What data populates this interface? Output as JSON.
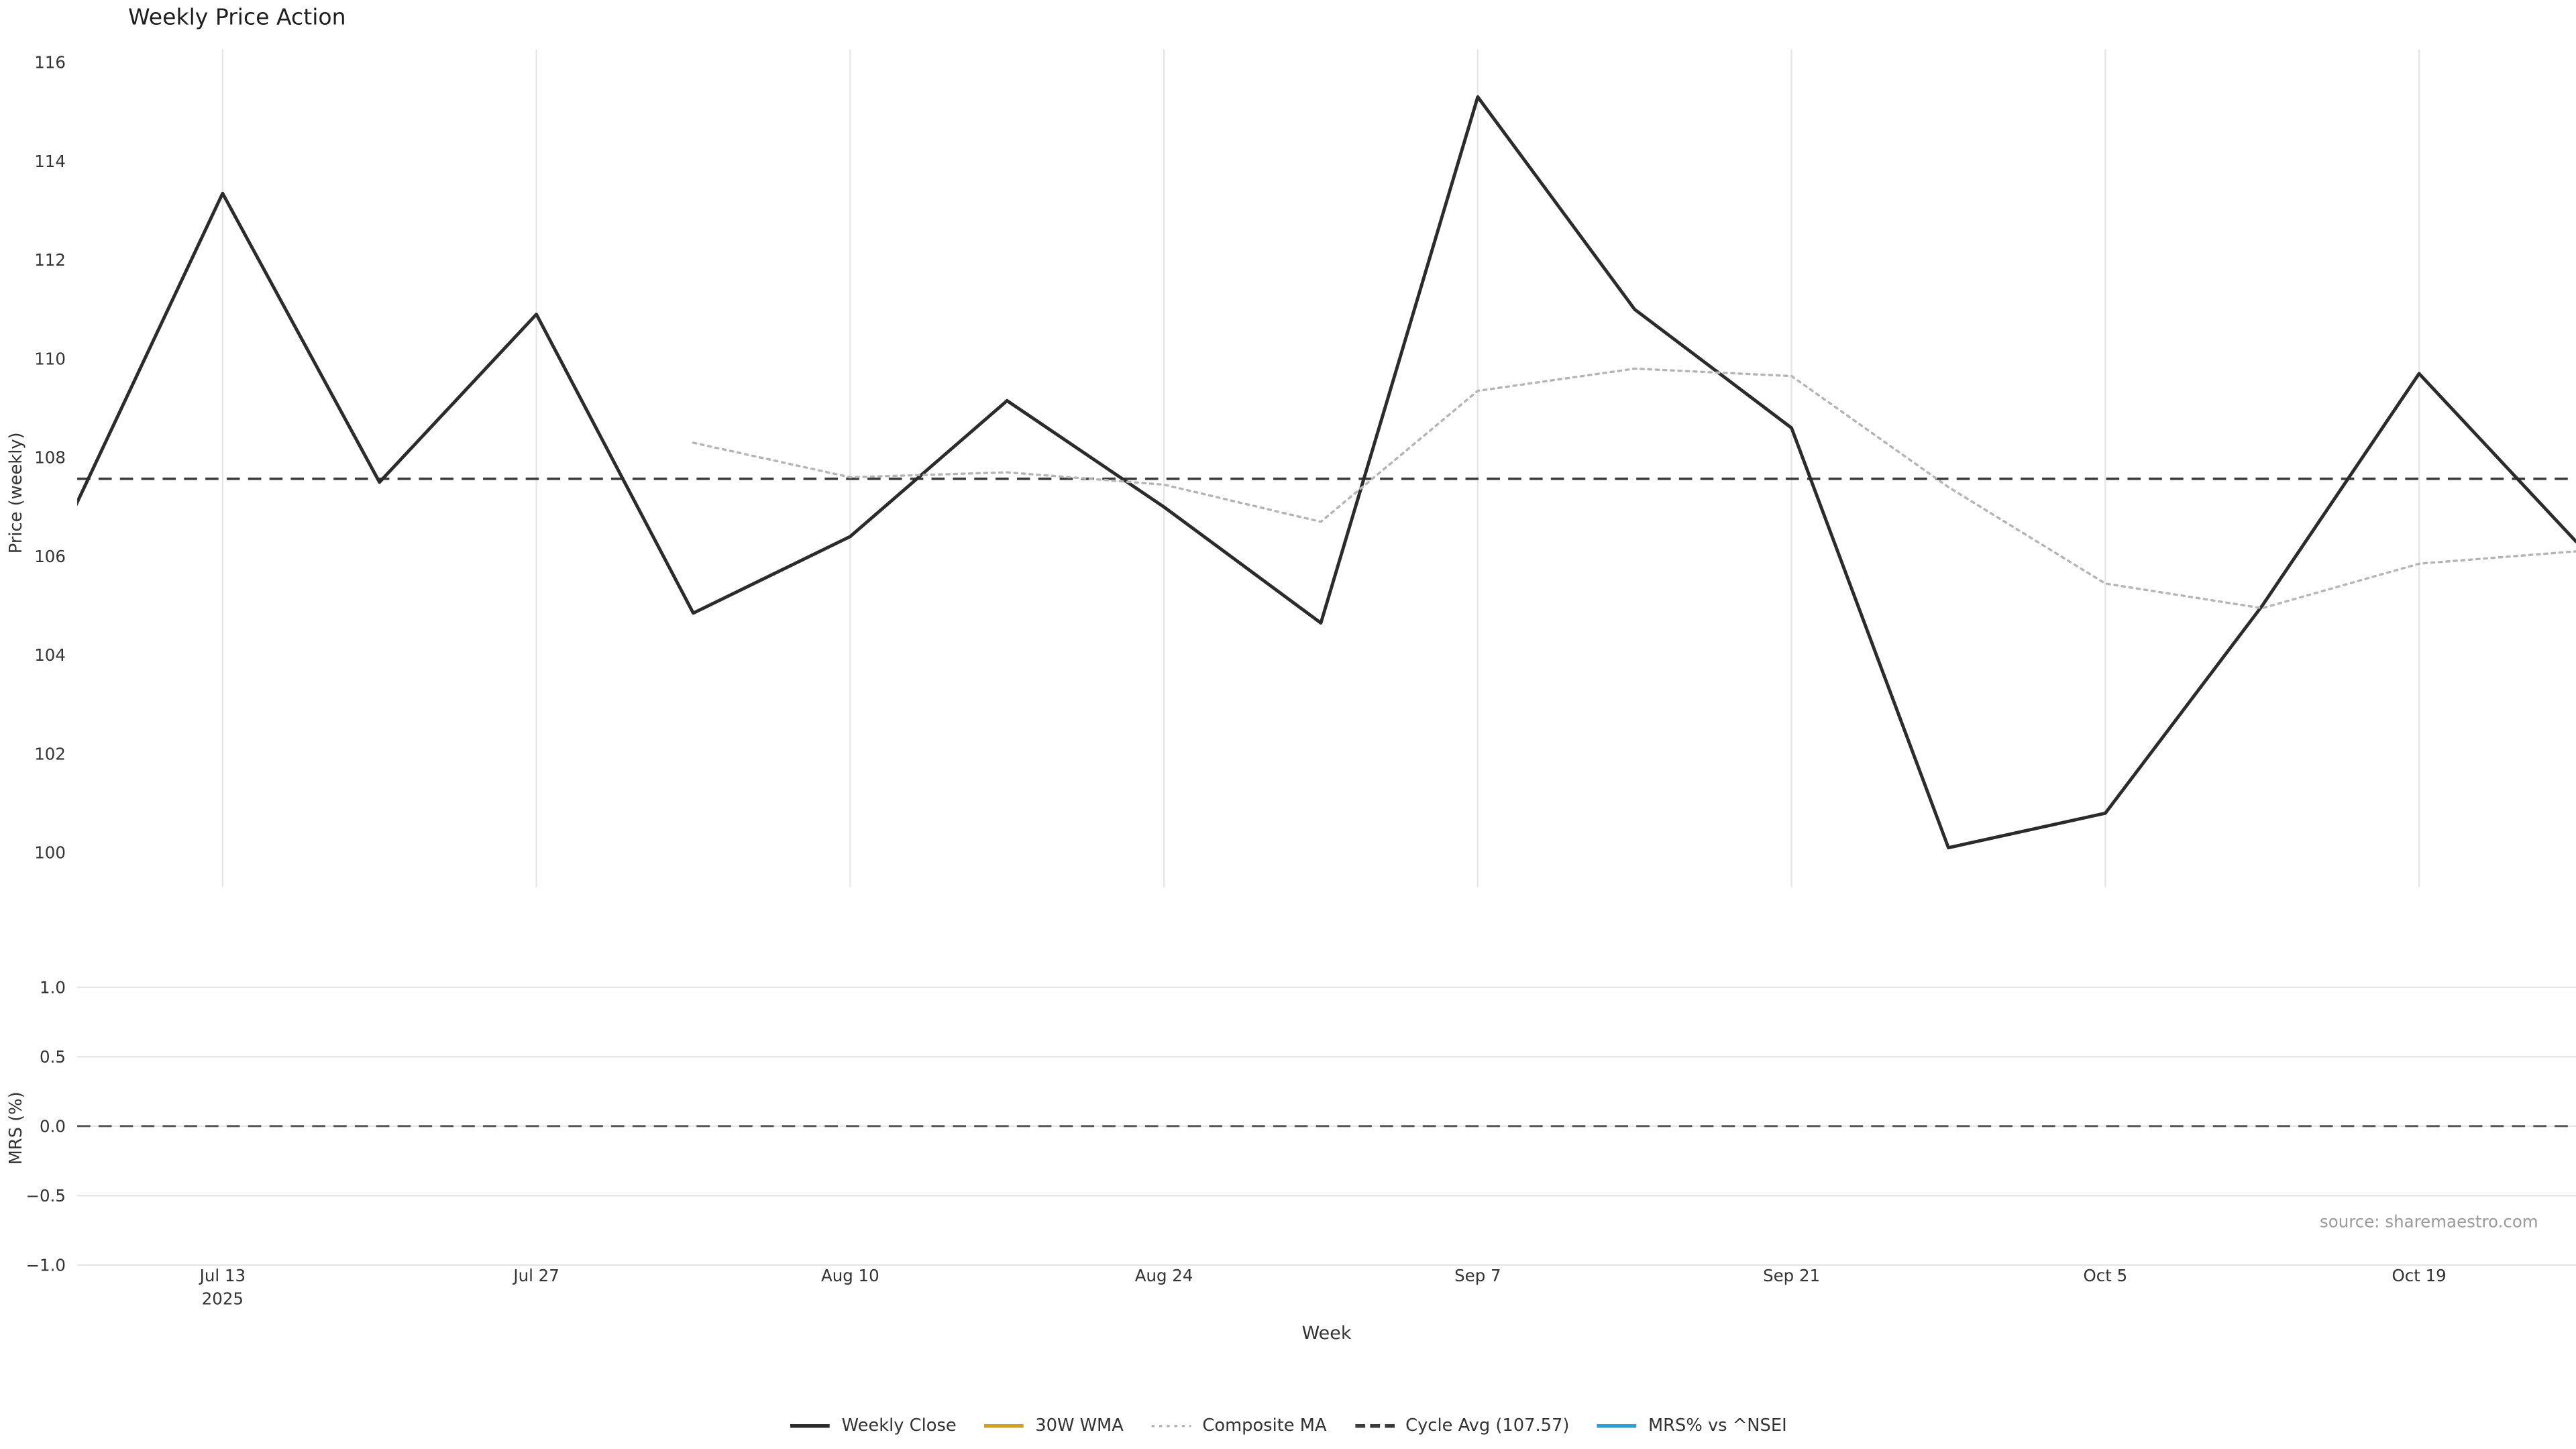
{
  "title": "Weekly Price Action",
  "source": "source: sharemaestro.com",
  "axes": {
    "x_label": "Week",
    "y_top_label": "Price (weekly)",
    "y_bottom_label": "MRS (%)",
    "x_ticks": [
      {
        "label": "Jul 13",
        "sub": "2025",
        "index": 1
      },
      {
        "label": "Jul 27",
        "index": 3
      },
      {
        "label": "Aug 10",
        "index": 5
      },
      {
        "label": "Aug 24",
        "index": 7
      },
      {
        "label": "Sep 7",
        "index": 9
      },
      {
        "label": "Sep 21",
        "index": 11
      },
      {
        "label": "Oct 5",
        "index": 13
      },
      {
        "label": "Oct 19",
        "index": 15
      }
    ],
    "price_ticks": [
      {
        "label": "116",
        "value": 116
      },
      {
        "label": "114",
        "value": 114
      },
      {
        "label": "112",
        "value": 112
      },
      {
        "label": "110",
        "value": 110
      },
      {
        "label": "108",
        "value": 108
      },
      {
        "label": "106",
        "value": 106
      },
      {
        "label": "104",
        "value": 104
      },
      {
        "label": "102",
        "value": 102
      },
      {
        "label": "100",
        "value": 100
      }
    ],
    "mrs_ticks": [
      {
        "label": "1.0",
        "value": 1.0
      },
      {
        "label": "0.5",
        "value": 0.5
      },
      {
        "label": "0.0",
        "value": 0.0
      },
      {
        "label": "−0.5",
        "value": -0.5
      },
      {
        "label": "−1.0",
        "value": -1.0
      }
    ]
  },
  "chart_data": {
    "type": "line",
    "title": "Weekly Price Action",
    "xlabel": "Week",
    "ylabel_top": "Price (weekly)",
    "ylabel_bottom": "MRS (%)",
    "ylim_top": [
      100,
      116
    ],
    "ylim_bottom": [
      -1.0,
      1.0
    ],
    "grid": true,
    "legend_position": "bottom-center",
    "x": [
      "Jul 6",
      "Jul 13",
      "Jul 20",
      "Jul 27",
      "Aug 3",
      "Aug 10",
      "Aug 17",
      "Aug 24",
      "Aug 31",
      "Sep 7",
      "Sep 14",
      "Sep 21",
      "Sep 28",
      "Oct 5",
      "Oct 12",
      "Oct 19",
      "Oct 26"
    ],
    "series": [
      {
        "name": "Weekly Close",
        "panel": "top",
        "color": "#2b2b2b",
        "style": "solid",
        "width": 2,
        "values": [
          106.6,
          113.35,
          107.5,
          110.9,
          104.85,
          106.4,
          109.15,
          107.0,
          104.65,
          115.3,
          111.0,
          108.6,
          100.1,
          100.8,
          105.0,
          109.7,
          106.3
        ]
      },
      {
        "name": "30W WMA",
        "panel": "top",
        "color": "#d4a017",
        "style": "solid",
        "width": 1.8,
        "values": []
      },
      {
        "name": "Composite MA",
        "panel": "top",
        "color": "#b5b5b5",
        "style": "dotted",
        "width": 1.4,
        "values": [
          null,
          null,
          null,
          null,
          108.3,
          107.6,
          107.7,
          107.45,
          106.7,
          109.35,
          109.8,
          109.65,
          107.4,
          105.45,
          104.95,
          105.85,
          106.1
        ]
      },
      {
        "name": "MRS% vs ^NSEI",
        "panel": "bottom",
        "color": "#2a9fd8",
        "style": "solid",
        "width": 1.8,
        "values": []
      }
    ],
    "references": [
      {
        "name": "Cycle Avg (107.57)",
        "panel": "top",
        "value": 107.57,
        "color": "#3a3a3a",
        "style": "dashed",
        "width": 1.5
      },
      {
        "name": "MRS zero line",
        "panel": "bottom",
        "value": 0.0,
        "color": "#555555",
        "style": "dashed",
        "width": 1.2
      }
    ],
    "cycle_avg": 107.57
  },
  "legend": [
    {
      "label": "Weekly Close",
      "color": "#2b2b2b",
      "style": "solid"
    },
    {
      "label": "30W WMA",
      "color": "#d4a017",
      "style": "solid"
    },
    {
      "label": "Composite MA",
      "color": "#b5b5b5",
      "style": "dotted"
    },
    {
      "label": "Cycle Avg (107.57)",
      "color": "#3a3a3a",
      "style": "dashed"
    },
    {
      "label": "MRS% vs ^NSEI",
      "color": "#2a9fd8",
      "style": "solid"
    }
  ]
}
